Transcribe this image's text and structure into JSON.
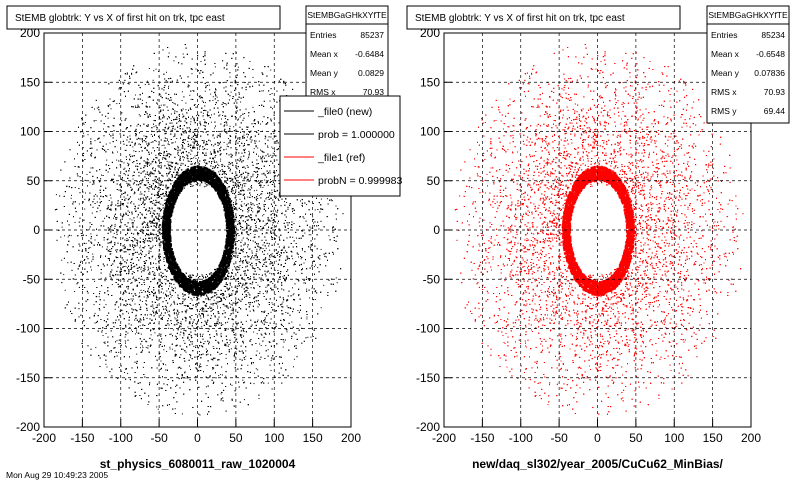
{
  "panels": [
    {
      "title": "StEMB globtrk: Y vs X of first hit on trk, tpc east",
      "xlabel": "st_physics_6080011_raw_1020004",
      "color": "#000000",
      "stats": {
        "name": "StEMBGaGHkXYfTE",
        "rows": [
          {
            "label": "Entries",
            "value": "85237"
          },
          {
            "label": "Mean x",
            "value": "-0.6484"
          },
          {
            "label": "Mean y",
            "value": "0.0829"
          },
          {
            "label": "RMS x",
            "value": "70.93"
          }
        ]
      },
      "legend": [
        {
          "label": "_file0 (new)",
          "color": "#000000"
        },
        {
          "label": "prob = 1.000000",
          "color": "#000000"
        },
        {
          "label": "_file1 (ref)",
          "color": "#ff0000"
        },
        {
          "label": "probN = 0.999983",
          "color": "#ff0000"
        }
      ]
    },
    {
      "title": "StEMB globtrk: Y vs X of first hit on trk, tpc east",
      "xlabel": "new/daq_sl302/year_2005/CuCu62_MinBias/",
      "color": "#ff0000",
      "stats": {
        "name": "StEMBGaGHkXYfTE",
        "rows": [
          {
            "label": "Entries",
            "value": "85234"
          },
          {
            "label": "Mean x",
            "value": "-0.6548"
          },
          {
            "label": "Mean y",
            "value": "0.07836"
          },
          {
            "label": "RMS x",
            "value": "70.93"
          },
          {
            "label": "RMS y",
            "value": "69.44"
          }
        ]
      }
    }
  ],
  "footer_text": "Mon Aug 29 10:49:23 2005",
  "chart_data": [
    {
      "type": "scatter",
      "title": "StEMB globtrk: Y vs X of first hit on trk, tpc east",
      "xlabel": "st_physics_6080011_raw_1020004",
      "ylabel": "",
      "xlim": [
        -200,
        200
      ],
      "ylim": [
        -200,
        200
      ],
      "xticks": [
        -200,
        -150,
        -100,
        -50,
        0,
        50,
        100,
        150,
        200
      ],
      "yticks": [
        -200,
        -150,
        -100,
        -50,
        0,
        50,
        100,
        150,
        200
      ],
      "grid": true,
      "series_color": "#000000",
      "entries": 85237,
      "mean_x": -0.6484,
      "mean_y": 0.0829,
      "rms_x": 70.93,
      "structure": {
        "empty_inner_radius": 45,
        "dense_ring_radius": 55,
        "outer_radius": 190
      }
    },
    {
      "type": "scatter",
      "title": "StEMB globtrk: Y vs X of first hit on trk, tpc east",
      "xlabel": "new/daq_sl302/year_2005/CuCu62_MinBias/",
      "ylabel": "",
      "xlim": [
        -200,
        200
      ],
      "ylim": [
        -200,
        200
      ],
      "xticks": [
        -200,
        -150,
        -100,
        -50,
        0,
        50,
        100,
        150,
        200
      ],
      "yticks": [
        -200,
        -150,
        -100,
        -50,
        0,
        50,
        100,
        150,
        200
      ],
      "grid": true,
      "series_color": "#ff0000",
      "entries": 85234,
      "mean_x": -0.6548,
      "mean_y": 0.07836,
      "rms_x": 70.93,
      "rms_y": 69.44,
      "structure": {
        "empty_inner_radius": 45,
        "dense_ring_radius": 55,
        "outer_radius": 190
      }
    }
  ]
}
